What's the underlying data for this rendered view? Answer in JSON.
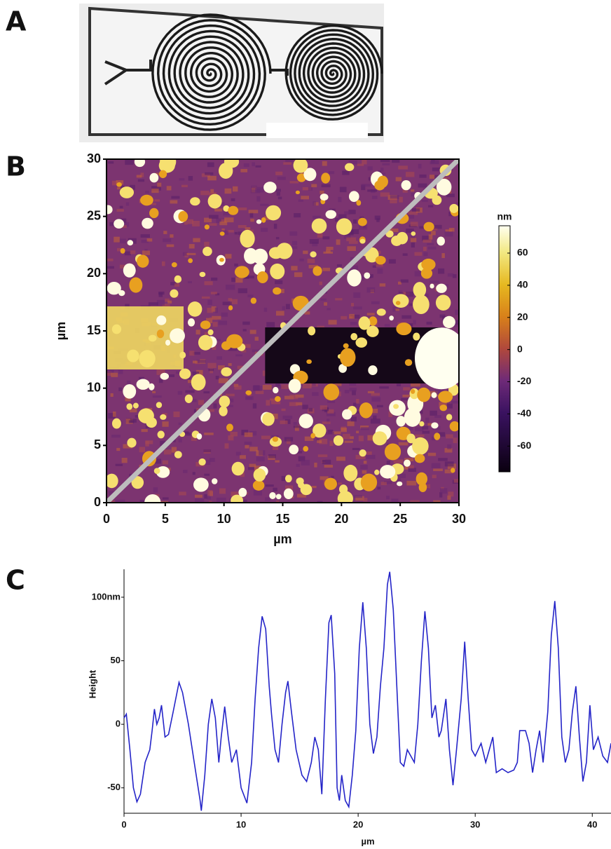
{
  "panel_labels": [
    "A",
    "B",
    "C"
  ],
  "chart_data": [
    {
      "type": "heatmap",
      "xlabel": "µm",
      "ylabel": "µm",
      "xlim": [
        0,
        30
      ],
      "ylim": [
        0,
        30
      ],
      "xticks": [
        0,
        5,
        10,
        15,
        20,
        25,
        30
      ],
      "yticks": [
        0,
        5,
        10,
        15,
        20,
        25,
        30
      ],
      "colorbar": {
        "label": "nm",
        "lim": [
          -76,
          77
        ],
        "ticks": [
          60,
          40,
          20,
          0,
          -20,
          -40,
          -60
        ]
      }
    },
    {
      "type": "line",
      "xlabel": "µm",
      "ylabel": "Height",
      "xlim": [
        0,
        41.6
      ],
      "ylim": [
        -70,
        122
      ],
      "xticks": [
        0,
        10,
        20,
        30,
        40
      ],
      "yticks": [
        {
          "value": 100,
          "label": "100nm"
        },
        50,
        0,
        -50
      ],
      "x": [
        0,
        0.2,
        0.5,
        0.8,
        1.1,
        1.4,
        1.8,
        2.2,
        2.4,
        2.6,
        2.8,
        3.0,
        3.2,
        3.5,
        3.8,
        4.2,
        4.7,
        5.0,
        5.5,
        6.0,
        6.5,
        6.6,
        6.9,
        7.2,
        7.5,
        7.8,
        8.1,
        8.3,
        8.6,
        8.9,
        9.2,
        9.6,
        10,
        10.5,
        10.9,
        11.2,
        11.5,
        11.8,
        12.1,
        12.4,
        12.6,
        12.9,
        13.2,
        13.5,
        13.8,
        14.0,
        14.3,
        14.7,
        15.2,
        15.6,
        16.0,
        16.3,
        16.6,
        16.9,
        17.2,
        17.5,
        17.7,
        18.0,
        18.2,
        18.4,
        18.6,
        18.9,
        19.2,
        19.5,
        19.8,
        20.1,
        20.4,
        20.7,
        21.0,
        21.3,
        21.6,
        21.9,
        22.2,
        22.5,
        22.7,
        23.0,
        23.3,
        23.6,
        23.9,
        24.2,
        24.5,
        24.8,
        25.1,
        25.4,
        25.7,
        26.0,
        26.3,
        26.6,
        26.9,
        27.1,
        27.5,
        27.8,
        28.1,
        28.4,
        28.8,
        29.1,
        29.4,
        29.7,
        30.0,
        30.5,
        30.9,
        31.2,
        31.5,
        31.8,
        32.3,
        32.8,
        33.3,
        33.6,
        33.8,
        34.3,
        34.6,
        34.9,
        35.2,
        35.5,
        35.8,
        36.2,
        36.5,
        36.8,
        37.1,
        37.4,
        37.7,
        38.0,
        38.3,
        38.6,
        38.9,
        39.2,
        39.5,
        39.8,
        40.1,
        40.5,
        40.9,
        41.3,
        41.6
      ],
      "series": [
        {
          "color": "#2424c8",
          "values": [
            5,
            8,
            -20,
            -50,
            -61,
            -55,
            -30,
            -20,
            -5,
            12,
            0,
            5,
            15,
            -10,
            -8,
            10,
            33,
            25,
            0,
            -30,
            -60,
            -68,
            -40,
            0,
            20,
            5,
            -30,
            -10,
            14,
            -10,
            -30,
            -20,
            -50,
            -62,
            -30,
            20,
            60,
            85,
            75,
            30,
            8,
            -20,
            -30,
            0,
            25,
            34,
            10,
            -20,
            -40,
            -45,
            -30,
            -10,
            -20,
            -55,
            20,
            80,
            86,
            40,
            -50,
            -60,
            -40,
            -60,
            -65,
            -40,
            -5,
            60,
            96,
            60,
            0,
            -23,
            -10,
            30,
            60,
            110,
            120,
            90,
            30,
            -30,
            -33,
            -20,
            -25,
            -30,
            0,
            50,
            89,
            60,
            5,
            15,
            -10,
            -5,
            20,
            -20,
            -48,
            -20,
            20,
            65,
            20,
            -20,
            -25,
            -15,
            -30,
            -20,
            -10,
            -38,
            -35,
            -38,
            -36,
            -30,
            -5,
            -5,
            -15,
            -38,
            -20,
            -5,
            -30,
            10,
            70,
            97,
            60,
            -10,
            -30,
            -20,
            10,
            30,
            -10,
            -45,
            -30,
            15,
            -20,
            -10,
            -25,
            -30,
            -15
          ]
        }
      ]
    }
  ]
}
